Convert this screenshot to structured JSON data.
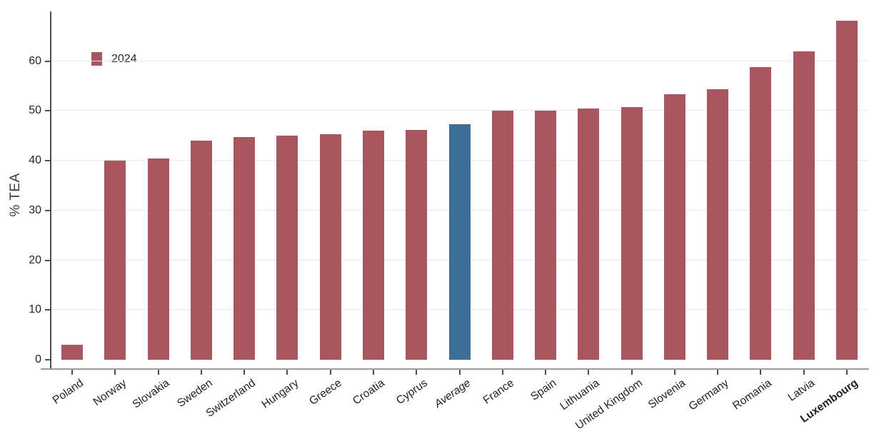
{
  "chart_data": {
    "type": "bar",
    "title": "",
    "xlabel": "",
    "ylabel": "% TEA",
    "legend": {
      "label": "2024",
      "position": "top-left"
    },
    "ylim": [
      0,
      70
    ],
    "yticks": [
      0,
      10,
      20,
      30,
      40,
      50,
      60
    ],
    "grid": true,
    "categories": [
      "Poland",
      "Norway",
      "Slovakia",
      "Sweden",
      "Switzerland",
      "Hungary",
      "Greece",
      "Croatia",
      "Cyprus",
      "Average",
      "France",
      "Spain",
      "Lithuania",
      "United Kingdom",
      "Slovenia",
      "Germany",
      "Romania",
      "Latvia",
      "Luxembourg"
    ],
    "values": [
      3.0,
      40.0,
      40.5,
      44.0,
      44.7,
      45.0,
      45.4,
      46.0,
      46.2,
      47.4,
      50.0,
      50.1,
      50.5,
      50.8,
      53.3,
      54.3,
      58.8,
      62.0,
      68.2
    ],
    "colors": {
      "default": "#a8565f",
      "highlight": "#3d6d94"
    },
    "highlight_category": "Average",
    "label_styles": {
      "Average": "italic",
      "Luxembourg": "bold"
    }
  }
}
